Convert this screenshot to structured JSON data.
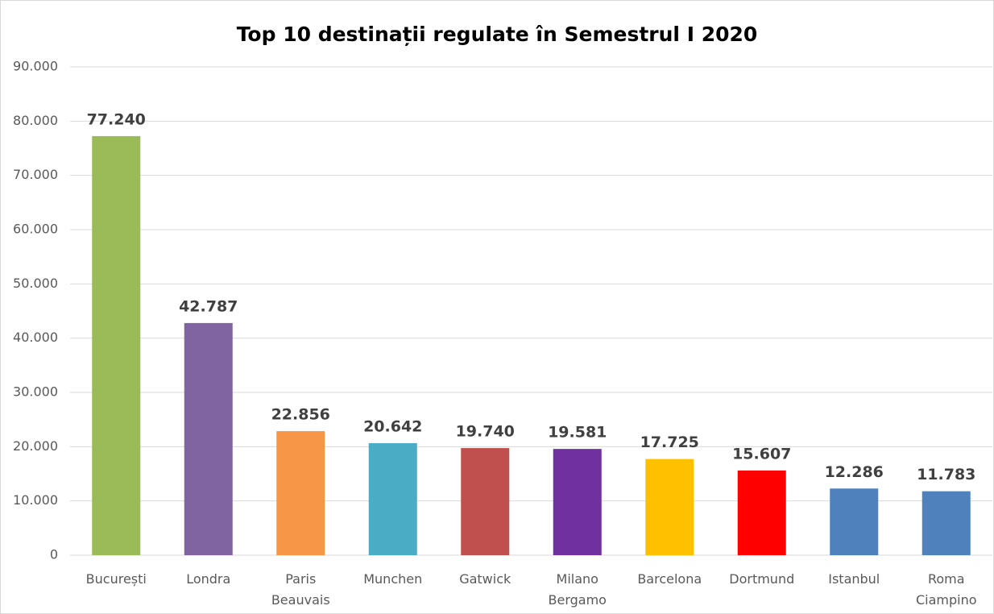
{
  "chart_data": {
    "type": "bar",
    "title": "Top 10 destinații regulate în Semestrul I 2020",
    "categories": [
      "București",
      "Londra",
      "Paris Beauvais",
      "Munchen",
      "Gatwick",
      "Milano Bergamo",
      "Barcelona",
      "Dortmund",
      "Istanbul",
      "Roma Ciampino"
    ],
    "values": [
      77240,
      42787,
      22856,
      20642,
      19740,
      19581,
      17725,
      15607,
      12286,
      11783
    ],
    "value_labels": [
      "77.240",
      "42.787",
      "22.856",
      "20.642",
      "19.740",
      "19.581",
      "17.725",
      "15.607",
      "12.286",
      "11.783"
    ],
    "colors": [
      "#9bbb59",
      "#8064a2",
      "#f79646",
      "#4bacc6",
      "#c0504d",
      "#7030a0",
      "#ffc000",
      "#ff0000",
      "#4f81bd",
      "#4f81bd"
    ],
    "ylim": [
      0,
      90000
    ],
    "yticks": [
      0,
      {
        "value": 10000,
        "label": "10.000"
      },
      {
        "value": 20000,
        "label": "20.000"
      },
      {
        "value": 30000,
        "label": "30.000"
      },
      {
        "value": 40000,
        "label": "40.000"
      },
      {
        "value": 50000,
        "label": "50.000"
      },
      {
        "value": 60000,
        "label": "60.000"
      },
      {
        "value": 70000,
        "label": "70.000"
      },
      {
        "value": 80000,
        "label": "80.000"
      },
      {
        "value": 90000,
        "label": "90.000"
      }
    ],
    "grid": true
  }
}
